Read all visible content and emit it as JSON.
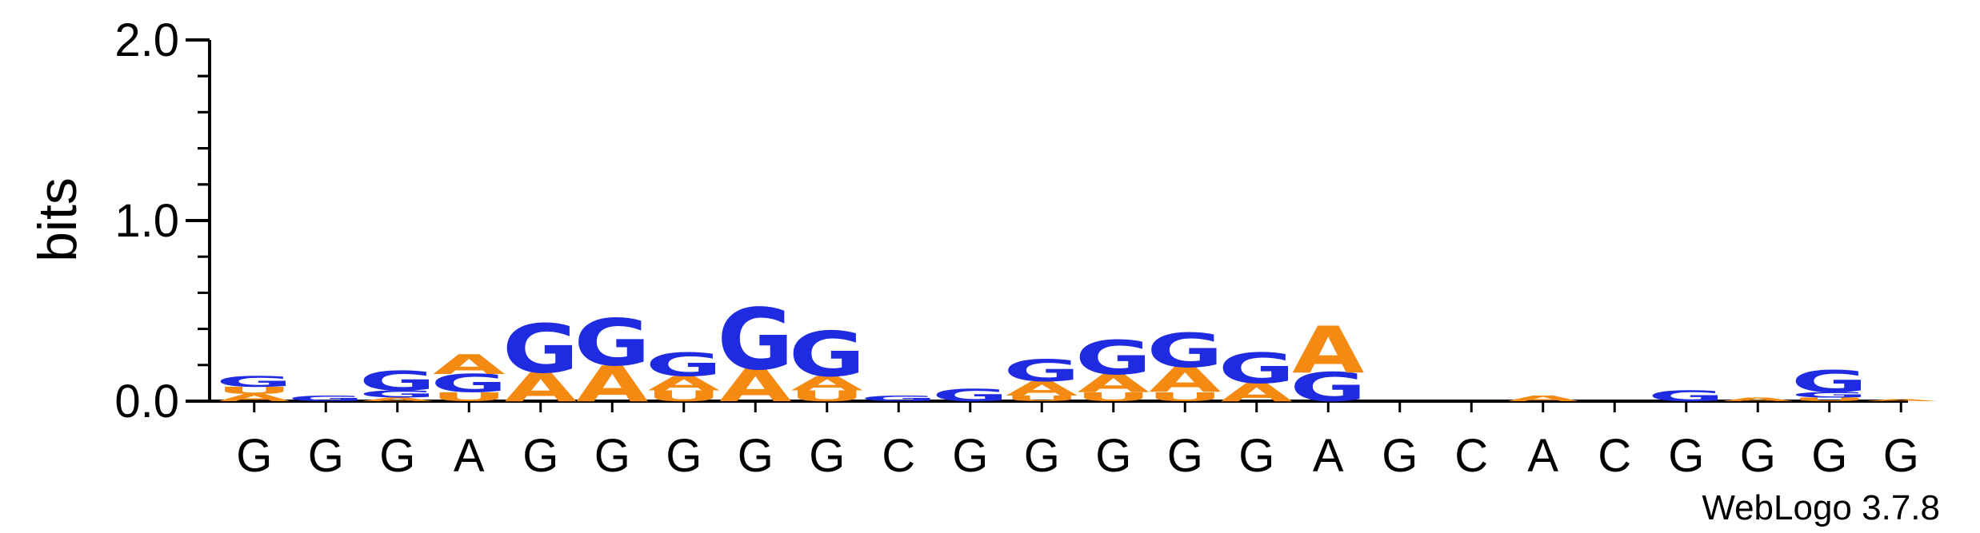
{
  "chart_data": {
    "type": "sequence-logo",
    "ylabel": "bits",
    "ylim": [
      0,
      2.0
    ],
    "yticks": [
      "0.0",
      "1.0",
      "2.0"
    ],
    "credit": "WebLogo 3.7.8",
    "colors": {
      "G": "#1f2be0",
      "A": "#f48a12",
      "U": "#f48a12",
      "C": "#1f2be0"
    },
    "positions": [
      {
        "label": "G",
        "stack": [
          [
            "A",
            0.04
          ],
          [
            "U",
            0.04
          ],
          [
            "G",
            0.06
          ]
        ]
      },
      {
        "label": "G",
        "stack": [
          [
            "G",
            0.03
          ]
        ]
      },
      {
        "label": "G",
        "stack": [
          [
            "A",
            0.02
          ],
          [
            "G",
            0.04
          ],
          [
            "G",
            0.11
          ]
        ]
      },
      {
        "label": "A",
        "stack": [
          [
            "U",
            0.05
          ],
          [
            "G",
            0.1
          ],
          [
            "A",
            0.11
          ]
        ]
      },
      {
        "label": "G",
        "stack": [
          [
            "A",
            0.16
          ],
          [
            "G",
            0.27
          ]
        ]
      },
      {
        "label": "G",
        "stack": [
          [
            "A",
            0.2
          ],
          [
            "G",
            0.26
          ]
        ]
      },
      {
        "label": "G",
        "stack": [
          [
            "U",
            0.06
          ],
          [
            "A",
            0.08
          ],
          [
            "G",
            0.13
          ]
        ]
      },
      {
        "label": "G",
        "stack": [
          [
            "A",
            0.18
          ],
          [
            "G",
            0.34
          ]
        ]
      },
      {
        "label": "G",
        "stack": [
          [
            "U",
            0.06
          ],
          [
            "A",
            0.08
          ],
          [
            "G",
            0.25
          ]
        ]
      },
      {
        "label": "C",
        "stack": [
          [
            "G",
            0.03
          ]
        ]
      },
      {
        "label": "G",
        "stack": [
          [
            "G",
            0.07
          ]
        ]
      },
      {
        "label": "G",
        "stack": [
          [
            "U",
            0.03
          ],
          [
            "A",
            0.08
          ],
          [
            "G",
            0.12
          ]
        ]
      },
      {
        "label": "G",
        "stack": [
          [
            "U",
            0.05
          ],
          [
            "A",
            0.1
          ],
          [
            "G",
            0.19
          ]
        ]
      },
      {
        "label": "G",
        "stack": [
          [
            "U",
            0.05
          ],
          [
            "A",
            0.14
          ],
          [
            "G",
            0.19
          ]
        ]
      },
      {
        "label": "G",
        "stack": [
          [
            "A",
            0.1
          ],
          [
            "G",
            0.17
          ]
        ]
      },
      {
        "label": "A",
        "stack": [
          [
            "G",
            0.16
          ],
          [
            "A",
            0.26
          ]
        ]
      },
      {
        "label": "G",
        "stack": []
      },
      {
        "label": "C",
        "stack": []
      },
      {
        "label": "A",
        "stack": [
          [
            "A",
            0.03
          ]
        ]
      },
      {
        "label": "C",
        "stack": []
      },
      {
        "label": "G",
        "stack": [
          [
            "G",
            0.06
          ]
        ]
      },
      {
        "label": "G",
        "stack": [
          [
            "A",
            0.02
          ]
        ]
      },
      {
        "label": "G",
        "stack": [
          [
            "U",
            0.02
          ],
          [
            "G",
            0.03
          ],
          [
            "G",
            0.12
          ]
        ]
      },
      {
        "label": "G",
        "stack": [
          [
            "A",
            0.01
          ]
        ]
      }
    ]
  }
}
